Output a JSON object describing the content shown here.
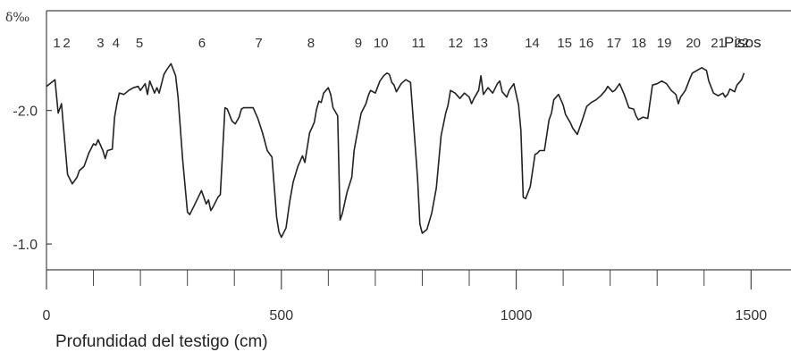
{
  "chart_data": {
    "type": "line",
    "ylabel": "δ‰",
    "xlabel": "Profundidad del testigo (cm)",
    "stage_series_label": "Pisos",
    "xlim": [
      0,
      1585
    ],
    "ylim": [
      -2.72,
      -0.82
    ],
    "y_inverted": true,
    "x_ticks": [
      0,
      500,
      1000,
      1500
    ],
    "x_tick_labels": [
      "0",
      "500",
      "1000",
      "1500"
    ],
    "x_minor_ticks": [
      100,
      200,
      300,
      400,
      600,
      700,
      800,
      900,
      1100,
      1200,
      1300,
      1400
    ],
    "y_ticks": [
      -2.0,
      -1.0
    ],
    "y_tick_labels": [
      "-2.0",
      "-1.0"
    ],
    "grid": false,
    "stages": [
      {
        "label": "1",
        "x": 22
      },
      {
        "label": "2",
        "x": 43
      },
      {
        "label": "3",
        "x": 115
      },
      {
        "label": "4",
        "x": 148
      },
      {
        "label": "5",
        "x": 198
      },
      {
        "label": "6",
        "x": 331
      },
      {
        "label": "7",
        "x": 452
      },
      {
        "label": "8",
        "x": 563
      },
      {
        "label": "9",
        "x": 664
      },
      {
        "label": "10",
        "x": 712
      },
      {
        "label": "11",
        "x": 792
      },
      {
        "label": "12",
        "x": 871
      },
      {
        "label": "13",
        "x": 924
      },
      {
        "label": "14",
        "x": 1034
      },
      {
        "label": "15",
        "x": 1103
      },
      {
        "label": "16",
        "x": 1149
      },
      {
        "label": "17",
        "x": 1208
      },
      {
        "label": "18",
        "x": 1261
      },
      {
        "label": "19",
        "x": 1315
      },
      {
        "label": "20",
        "x": 1377
      },
      {
        "label": "21",
        "x": 1430
      },
      {
        "label": "22",
        "x": 1480
      }
    ],
    "series": [
      {
        "x": [
          0,
          18,
          25,
          32,
          38,
          45,
          55,
          65,
          70,
          80,
          85,
          90,
          100,
          105,
          110,
          120,
          125,
          130,
          140,
          145,
          150,
          155,
          165,
          175,
          185,
          195,
          200,
          210,
          215,
          220,
          230,
          235,
          240,
          250,
          255,
          265,
          275,
          280,
          290,
          300,
          305,
          315,
          330,
          340,
          345,
          350,
          355,
          365,
          370,
          380,
          385,
          395,
          402,
          410,
          415,
          420,
          430,
          440,
          450,
          460,
          470,
          480,
          490,
          495,
          500,
          510,
          518,
          525,
          535,
          545,
          550,
          560,
          570,
          575,
          580,
          585,
          590,
          600,
          605,
          610,
          620,
          625,
          630,
          640,
          650,
          655,
          660,
          670,
          680,
          685,
          690,
          700,
          710,
          718,
          725,
          730,
          735,
          740,
          745,
          755,
          765,
          775,
          785,
          790,
          795,
          800,
          810,
          820,
          830,
          840,
          850,
          855,
          860,
          870,
          880,
          890,
          900,
          905,
          910,
          920,
          925,
          930,
          940,
          950,
          960,
          965,
          970,
          980,
          985,
          995,
          1005,
          1010,
          1015,
          1020,
          1030,
          1040,
          1045,
          1050,
          1060,
          1070,
          1075,
          1080,
          1090,
          1100,
          1105,
          1115,
          1120,
          1130,
          1140,
          1150,
          1160,
          1170,
          1180,
          1190,
          1195,
          1205,
          1210,
          1220,
          1230,
          1240,
          1250,
          1255,
          1260,
          1270,
          1280,
          1290,
          1300,
          1310,
          1320,
          1330,
          1340,
          1345,
          1350,
          1360,
          1370,
          1375,
          1385,
          1395,
          1405,
          1410,
          1420,
          1430,
          1440,
          1445,
          1450,
          1455,
          1465,
          1470,
          1480,
          1485
        ],
        "y": [
          -2.18,
          -2.23,
          -1.98,
          -2.05,
          -1.8,
          -1.52,
          -1.45,
          -1.5,
          -1.55,
          -1.58,
          -1.63,
          -1.68,
          -1.75,
          -1.74,
          -1.78,
          -1.7,
          -1.64,
          -1.7,
          -1.71,
          -1.95,
          -2.05,
          -2.13,
          -2.12,
          -2.15,
          -2.17,
          -2.18,
          -2.15,
          -2.2,
          -2.12,
          -2.22,
          -2.13,
          -2.17,
          -2.13,
          -2.27,
          -2.3,
          -2.35,
          -2.26,
          -2.1,
          -1.63,
          -1.24,
          -1.22,
          -1.29,
          -1.4,
          -1.3,
          -1.33,
          -1.25,
          -1.28,
          -1.35,
          -1.37,
          -2.02,
          -2.01,
          -1.92,
          -1.9,
          -1.95,
          -2.01,
          -2.02,
          -2.02,
          -2.02,
          -1.94,
          -1.83,
          -1.7,
          -1.65,
          -1.2,
          -1.09,
          -1.05,
          -1.12,
          -1.32,
          -1.46,
          -1.58,
          -1.66,
          -1.61,
          -1.83,
          -1.91,
          -2.01,
          -2.07,
          -2.06,
          -2.13,
          -2.17,
          -2.12,
          -2.02,
          -1.96,
          -1.18,
          -1.23,
          -1.39,
          -1.5,
          -1.7,
          -1.8,
          -1.98,
          -2.05,
          -2.11,
          -2.15,
          -2.13,
          -2.22,
          -2.26,
          -2.28,
          -2.27,
          -2.21,
          -2.19,
          -2.14,
          -2.2,
          -2.23,
          -2.21,
          -1.73,
          -1.49,
          -1.15,
          -1.08,
          -1.11,
          -1.23,
          -1.42,
          -1.81,
          -1.98,
          -2.04,
          -2.15,
          -2.13,
          -2.09,
          -2.13,
          -2.1,
          -2.05,
          -2.09,
          -2.15,
          -2.26,
          -2.12,
          -2.17,
          -2.13,
          -2.2,
          -2.22,
          -2.14,
          -2.1,
          -2.15,
          -2.2,
          -2.04,
          -1.85,
          -1.35,
          -1.34,
          -1.43,
          -1.67,
          -1.68,
          -1.7,
          -1.7,
          -1.93,
          -1.98,
          -2.08,
          -2.12,
          -2.04,
          -1.97,
          -1.91,
          -1.87,
          -1.82,
          -1.92,
          -2.03,
          -2.06,
          -2.08,
          -2.11,
          -2.15,
          -2.18,
          -2.14,
          -2.15,
          -2.2,
          -2.12,
          -2.02,
          -2.01,
          -1.96,
          -1.93,
          -1.95,
          -1.94,
          -2.19,
          -2.2,
          -2.22,
          -2.2,
          -2.15,
          -2.12,
          -2.05,
          -2.1,
          -2.15,
          -2.24,
          -2.28,
          -2.3,
          -2.32,
          -2.3,
          -2.22,
          -2.13,
          -2.11,
          -2.13,
          -2.1,
          -2.12,
          -2.16,
          -2.14,
          -2.19,
          -2.23,
          -2.28
        ]
      }
    ]
  }
}
